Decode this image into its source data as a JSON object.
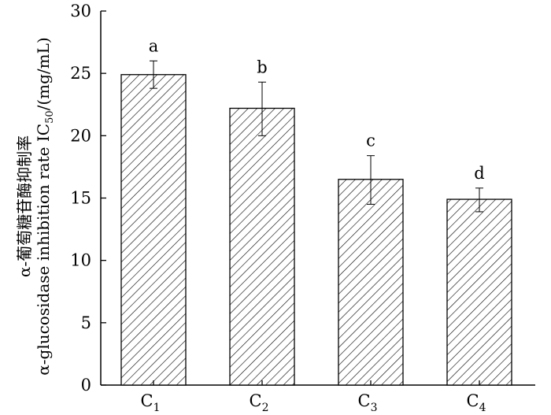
{
  "chart_data": {
    "type": "bar",
    "categories": [
      {
        "base": "C",
        "sub": "1"
      },
      {
        "base": "C",
        "sub": "2"
      },
      {
        "base": "C",
        "sub": "3"
      },
      {
        "base": "C",
        "sub": "4"
      }
    ],
    "values": [
      24.9,
      22.2,
      16.5,
      14.9
    ],
    "error_upper": [
      26.0,
      24.3,
      18.4,
      15.8
    ],
    "error_lower": [
      23.8,
      20.0,
      14.5,
      13.9
    ],
    "significance_letters": [
      "a",
      "b",
      "c",
      "d"
    ],
    "ylim": [
      0,
      30
    ],
    "yticks": [
      "0",
      "5",
      "10",
      "15",
      "20",
      "25",
      "30"
    ],
    "ylabel_line1": "α-葡萄糖苷酶抑制率",
    "ylabel_line2_prefix": "α-glucosidase inhibition rate IC",
    "ylabel_line2_sub": "50",
    "ylabel_line2_suffix": "/(mg/mL)",
    "bar_fill": "hatched",
    "grid": false
  }
}
